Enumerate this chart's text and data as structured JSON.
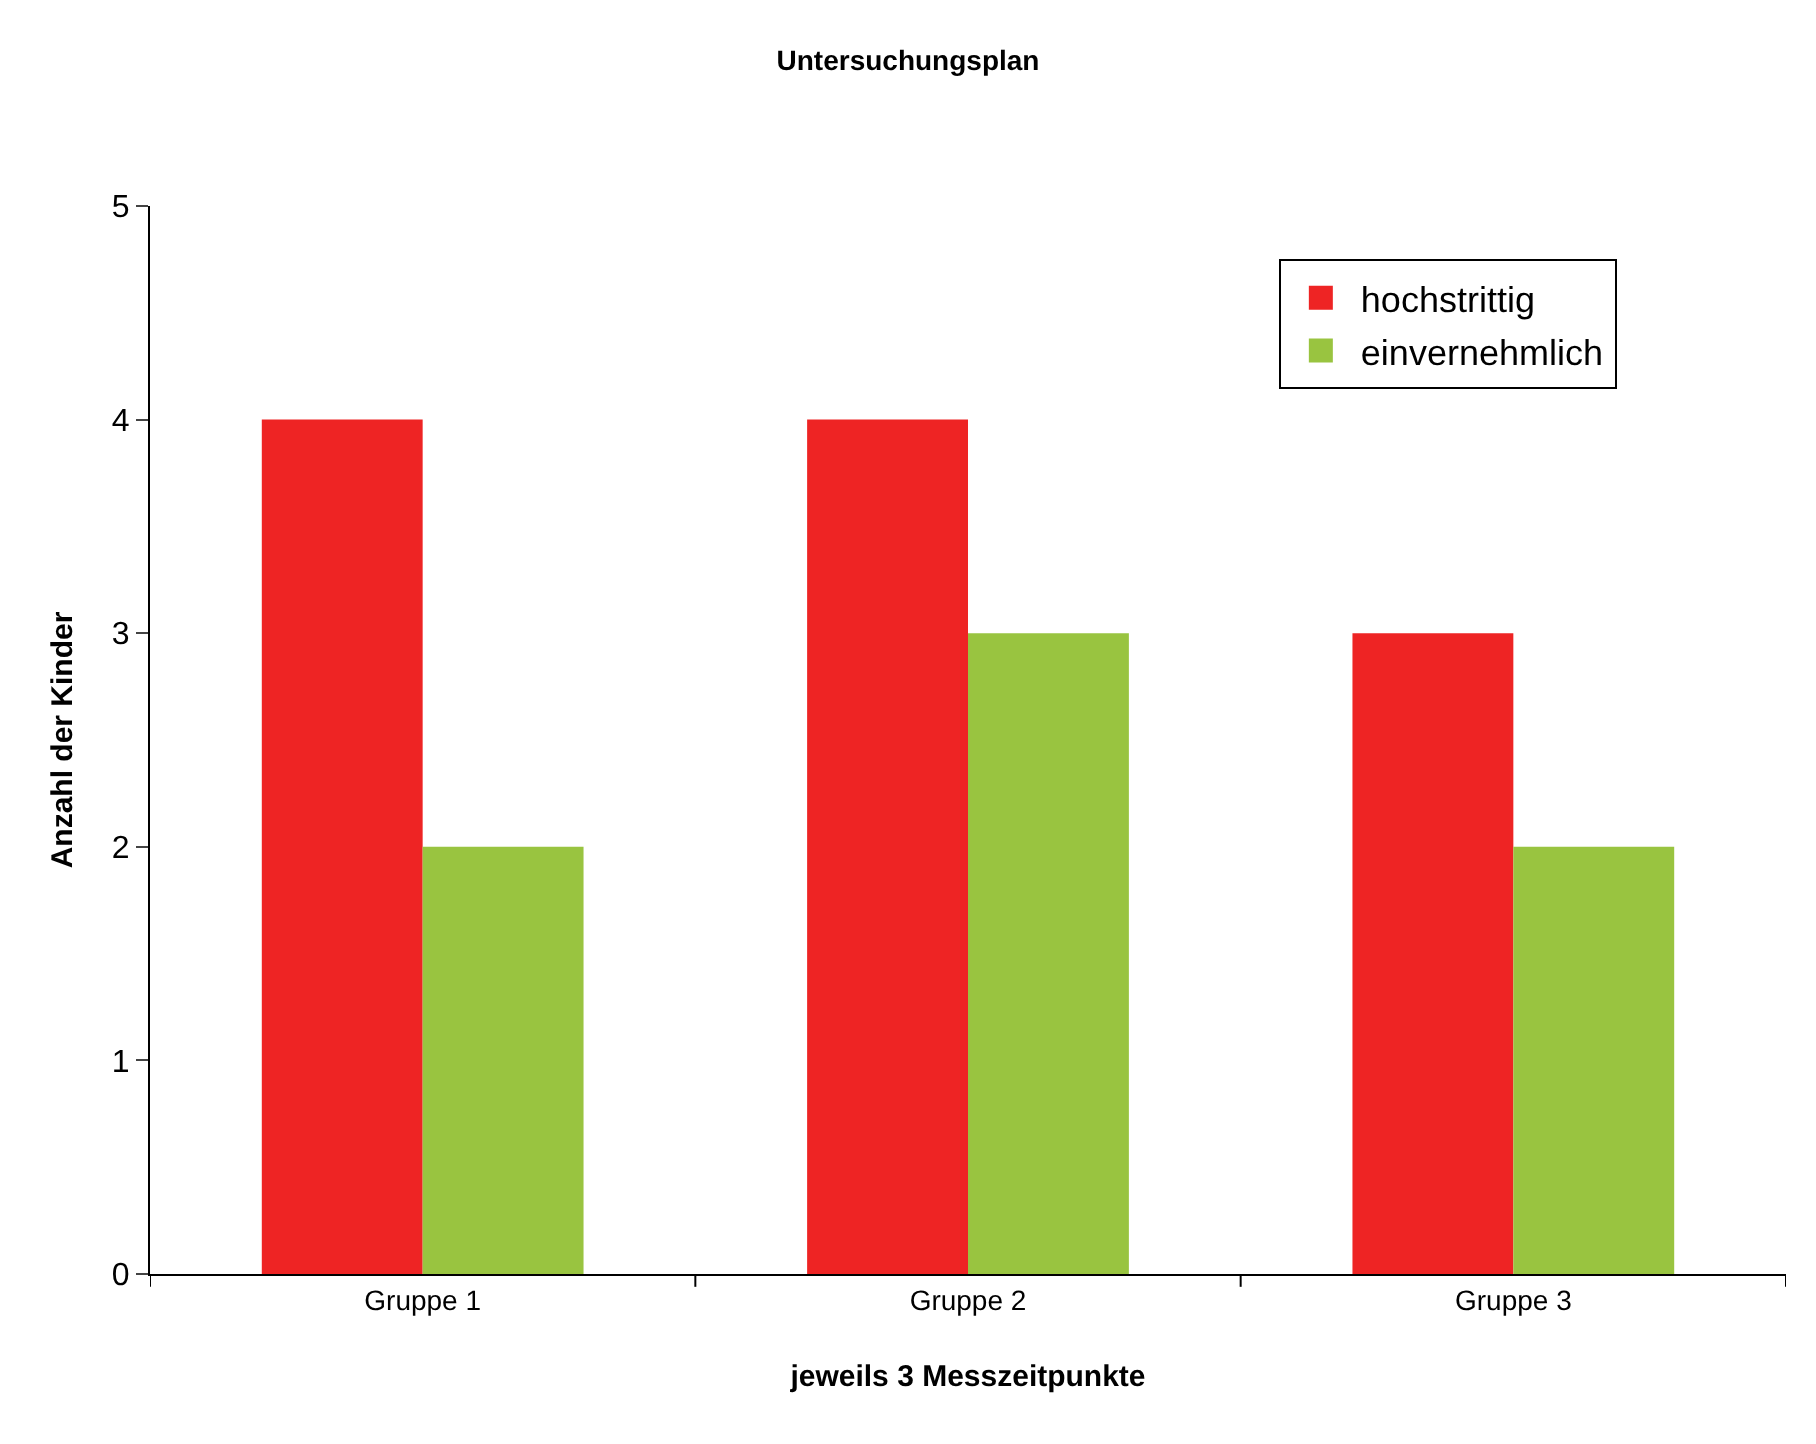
{
  "chart_data": {
    "type": "bar",
    "title": "Untersuchungsplan",
    "xlabel": "jeweils 3 Messzeitpunkte",
    "ylabel": "Anzahl der Kinder",
    "categories": [
      "Gruppe 1",
      "Gruppe 2",
      "Gruppe 3"
    ],
    "series": [
      {
        "name": "hochstrittig",
        "color": "#ee2424",
        "values": [
          4,
          4,
          3
        ]
      },
      {
        "name": "einvernehmlich",
        "color": "#99c440",
        "values": [
          2,
          3,
          2
        ]
      }
    ],
    "ylim": [
      0,
      5
    ],
    "yticks": [
      0,
      1,
      2,
      3,
      4,
      5
    ],
    "legend": "top right"
  }
}
